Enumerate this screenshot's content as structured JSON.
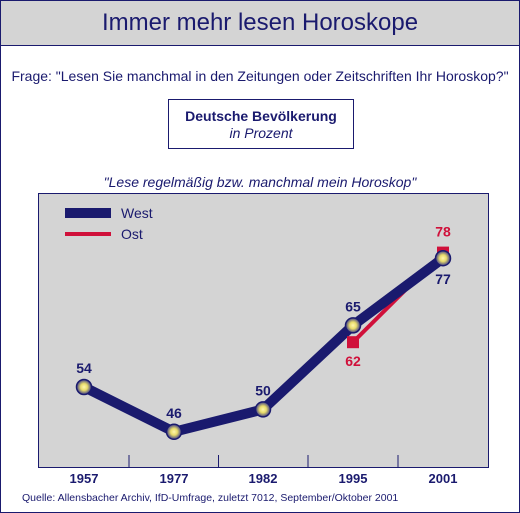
{
  "title": "Immer mehr lesen Horoskope",
  "question": "Frage: \"Lesen Sie manchmal in den Zeitungen oder Zeitschriften Ihr Horoskop?\"",
  "population": "Deutsche Bevölkerung",
  "unit": "in Prozent",
  "series_caption": "\"Lese regelmäßig bzw. manchmal mein Horoskop\"",
  "source": "Quelle: Allensbacher Archiv, IfD-Umfrage, zuletzt 7012, September/Oktober 2001",
  "colors": {
    "west": "#1a1a6e",
    "ost": "#d0103a",
    "background": "#d4d4d4",
    "marker": "#e8dc6a"
  },
  "chart_data": {
    "type": "line",
    "categories": [
      "1957",
      "1977",
      "1982",
      "1995",
      "2001"
    ],
    "series": [
      {
        "name": "West",
        "values": [
          54,
          46,
          50,
          65,
          77
        ]
      },
      {
        "name": "Ost",
        "values": [
          null,
          null,
          null,
          62,
          78
        ]
      }
    ],
    "title": "Immer mehr lesen Horoskope",
    "legend": "top-left",
    "grid": false
  }
}
